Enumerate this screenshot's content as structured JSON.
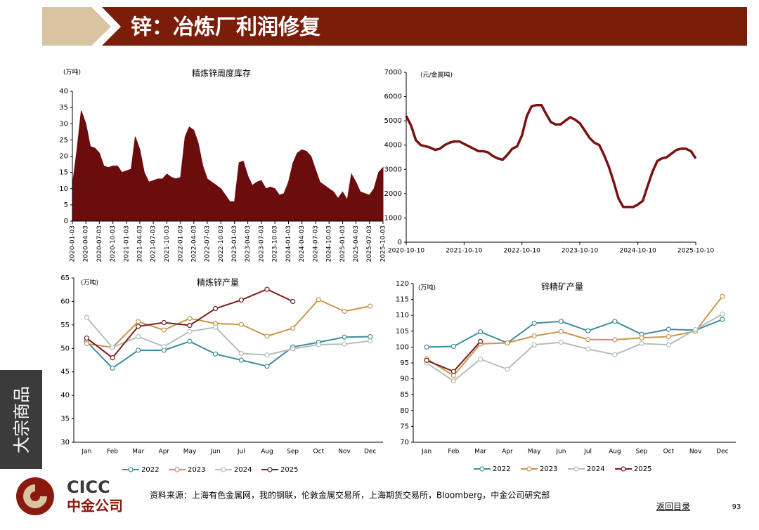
{
  "header": {
    "title": "锌：冶炼厂利润修复"
  },
  "sidebar": {
    "label": "大宗商品"
  },
  "footer": {
    "logo_en": "CICC",
    "logo_cn": "中金公司",
    "source": "资料来源：上海有色金属网，我的钢联，伦敦金属交易所，上海期货交易所，Bloomberg，中金公司研究部",
    "back": "返回目录",
    "page": "93"
  },
  "chart_data": [
    {
      "type": "area",
      "title": "精炼锌周度库存",
      "unit": "(万吨)",
      "color": "#6b0d0d",
      "x": [
        "2020-01-03",
        "2020-02-03",
        "2020-03-03",
        "2020-04-03",
        "2020-05-03",
        "2020-06-03",
        "2020-07-03",
        "2020-08-03",
        "2020-09-03",
        "2020-10-03",
        "2020-11-03",
        "2020-12-03",
        "2021-01-03",
        "2021-02-03",
        "2021-03-03",
        "2021-04-03",
        "2021-05-03",
        "2021-06-03",
        "2021-07-03",
        "2021-08-03",
        "2021-09-03",
        "2021-10-03",
        "2021-11-03",
        "2021-12-03",
        "2022-01-03",
        "2022-02-03",
        "2022-03-03",
        "2022-04-03",
        "2022-05-03",
        "2022-06-03",
        "2022-07-03",
        "2022-08-03",
        "2022-09-03",
        "2022-10-03",
        "2022-11-03",
        "2022-12-03",
        "2023-01-03",
        "2023-02-03",
        "2023-03-03",
        "2023-04-03",
        "2023-05-03",
        "2023-06-03",
        "2023-07-03",
        "2023-08-03",
        "2023-09-03",
        "2023-10-03",
        "2023-11-03",
        "2023-12-03",
        "2024-01-03",
        "2024-02-03",
        "2024-03-03",
        "2024-04-03",
        "2024-05-03",
        "2024-06-03",
        "2024-07-03",
        "2024-08-03",
        "2024-09-03",
        "2024-10-03",
        "2024-11-03",
        "2024-12-03",
        "2025-01-03",
        "2025-02-03",
        "2025-03-03",
        "2025-04-03",
        "2025-05-03",
        "2025-06-03",
        "2025-07-03",
        "2025-08-03",
        "2025-09-03",
        "2025-10-03"
      ],
      "values": [
        11,
        22,
        34,
        30,
        23,
        22.5,
        21,
        17,
        16.5,
        17,
        17,
        15,
        15.5,
        16,
        26,
        22,
        15,
        12,
        12.5,
        13,
        13,
        14.5,
        13.5,
        13,
        13.5,
        26,
        29,
        28,
        24,
        17,
        13,
        12,
        11,
        10,
        8,
        6,
        6,
        18,
        18.5,
        14,
        11,
        12,
        12.5,
        10,
        10.5,
        10,
        8,
        8.5,
        12,
        18,
        21,
        22,
        21.5,
        20,
        16,
        12,
        11,
        10,
        9,
        7,
        9,
        6.5,
        14.5,
        12,
        9,
        8.5,
        8,
        10,
        15,
        16.5
      ],
      "xticks": [
        "2020-01-03",
        "2020-04-03",
        "2020-07-03",
        "2020-10-03",
        "2021-01-03",
        "2021-04-03",
        "2021-07-03",
        "2021-10-03",
        "2022-01-03",
        "2022-04-03",
        "2022-07-03",
        "2022-10-03",
        "2023-01-03",
        "2023-04-03",
        "2023-07-03",
        "2023-10-03",
        "2024-01-03",
        "2024-04-03",
        "2024-07-03",
        "2024-10-03",
        "2025-01-03",
        "2025-04-03",
        "2025-07-03",
        "2025-10-03"
      ],
      "ylim": [
        0,
        40
      ],
      "yticks": [
        0,
        5,
        10,
        15,
        20,
        25,
        30,
        35,
        40
      ],
      "grid": false
    },
    {
      "type": "line",
      "unit": "(元/金属吨)",
      "color": "#7a1212",
      "x": [
        "2020-10-10",
        "2020-11-10",
        "2020-12-10",
        "2021-01-10",
        "2021-02-10",
        "2021-03-10",
        "2021-04-10",
        "2021-05-10",
        "2021-06-10",
        "2021-07-10",
        "2021-08-10",
        "2021-09-10",
        "2021-10-10",
        "2021-11-10",
        "2021-12-10",
        "2022-01-10",
        "2022-02-10",
        "2022-03-10",
        "2022-04-10",
        "2022-05-10",
        "2022-06-10",
        "2022-07-10",
        "2022-08-10",
        "2022-09-10",
        "2022-10-10",
        "2022-11-10",
        "2022-12-10",
        "2023-01-10",
        "2023-02-10",
        "2023-03-10",
        "2023-04-10",
        "2023-05-10",
        "2023-06-10",
        "2023-07-10",
        "2023-08-10",
        "2023-09-10",
        "2023-10-10",
        "2023-11-10",
        "2023-12-10",
        "2024-01-10",
        "2024-02-10",
        "2024-03-10",
        "2024-04-10",
        "2024-05-10",
        "2024-06-10",
        "2024-07-10",
        "2024-08-10",
        "2024-09-10",
        "2024-10-10",
        "2024-11-10",
        "2024-12-10",
        "2025-01-10",
        "2025-02-10",
        "2025-03-10",
        "2025-04-10",
        "2025-05-10",
        "2025-06-10",
        "2025-07-10",
        "2025-08-10",
        "2025-09-10",
        "2025-10-10"
      ],
      "values": [
        5200,
        4800,
        4200,
        4000,
        3950,
        3900,
        3800,
        3850,
        4000,
        4100,
        4150,
        4150,
        4050,
        3950,
        3850,
        3750,
        3750,
        3700,
        3550,
        3450,
        3400,
        3600,
        3850,
        3950,
        4400,
        5200,
        5600,
        5650,
        5650,
        5300,
        4950,
        4850,
        4850,
        5000,
        5150,
        5050,
        4900,
        4600,
        4300,
        4100,
        4000,
        3600,
        3100,
        2500,
        1800,
        1450,
        1450,
        1450,
        1550,
        1700,
        2300,
        2900,
        3350,
        3450,
        3500,
        3650,
        3800,
        3850,
        3850,
        3750,
        3450
      ],
      "xticks": [
        "2020-10-10",
        "2021-10-10",
        "2022-10-10",
        "2023-10-10",
        "2024-10-10",
        "2025-10-10"
      ],
      "ylim": [
        0,
        7000
      ],
      "yticks": [
        0,
        1000,
        2000,
        3000,
        4000,
        5000,
        6000,
        7000
      ],
      "grid": false
    },
    {
      "type": "line",
      "title": "精炼锌产量",
      "unit": "(万吨)",
      "markers": true,
      "categories": [
        "Jan",
        "Feb",
        "Mar",
        "Apr",
        "May",
        "Jun",
        "Jul",
        "Aug",
        "Sep",
        "Oct",
        "Nov",
        "Dec"
      ],
      "series": [
        {
          "name": "2022",
          "color": "#3f8c9c",
          "values": [
            51.5,
            45.8,
            49.6,
            49.6,
            51.5,
            48.8,
            47.5,
            46.2,
            50.3,
            51.3,
            52.4,
            52.5
          ]
        },
        {
          "name": "2023",
          "color": "#c8964e",
          "values": [
            51.0,
            50.2,
            55.7,
            53.9,
            56.4,
            55.3,
            55.1,
            52.6,
            54.3,
            60.4,
            57.9,
            59.0
          ]
        },
        {
          "name": "2024",
          "color": "#b4bebe",
          "values": [
            56.6,
            50.2,
            52.5,
            50.4,
            53.6,
            54.5,
            48.9,
            48.6,
            49.9,
            50.8,
            50.9,
            51.6
          ]
        },
        {
          "name": "2025",
          "color": "#7b1b1b",
          "values": [
            52.2,
            48.0,
            54.7,
            55.5,
            54.9,
            58.5,
            60.3,
            62.6,
            60.0,
            null,
            null,
            null
          ]
        }
      ],
      "ylim": [
        30,
        65
      ],
      "yticks": [
        30,
        35,
        40,
        45,
        50,
        55,
        60,
        65
      ],
      "grid": false
    },
    {
      "type": "line",
      "title": "锌精矿产量",
      "unit": "(万吨)",
      "markers": true,
      "categories": [
        "Jan",
        "Feb",
        "Mar",
        "Apr",
        "May",
        "Jun",
        "Jul",
        "Aug",
        "Sep",
        "Oct",
        "Nov",
        "Dec"
      ],
      "series": [
        {
          "name": "2022",
          "color": "#3f8c9c",
          "values": [
            100,
            100.2,
            104.8,
            101.3,
            107.5,
            108.1,
            105.1,
            108.1,
            104.0,
            105.6,
            105.3,
            108.7
          ]
        },
        {
          "name": "2023",
          "color": "#c8964e",
          "values": [
            96.3,
            91.0,
            101.0,
            101.3,
            103.5,
            104.9,
            102.4,
            102.3,
            102.9,
            103.3,
            105.0,
            116.0
          ]
        },
        {
          "name": "2024",
          "color": "#b4bebe",
          "values": [
            95.0,
            89.3,
            96.2,
            93.0,
            100.7,
            101.5,
            99.4,
            97.6,
            101.1,
            100.7,
            105.5,
            110.4
          ]
        },
        {
          "name": "2025",
          "color": "#7b1b1b",
          "values": [
            95.8,
            92.3,
            101.8,
            null,
            null,
            null,
            null,
            null,
            null,
            null,
            null,
            null
          ]
        }
      ],
      "ylim": [
        70,
        120
      ],
      "yticks": [
        70,
        75,
        80,
        85,
        90,
        95,
        100,
        105,
        110,
        115,
        120
      ],
      "grid": false
    }
  ]
}
